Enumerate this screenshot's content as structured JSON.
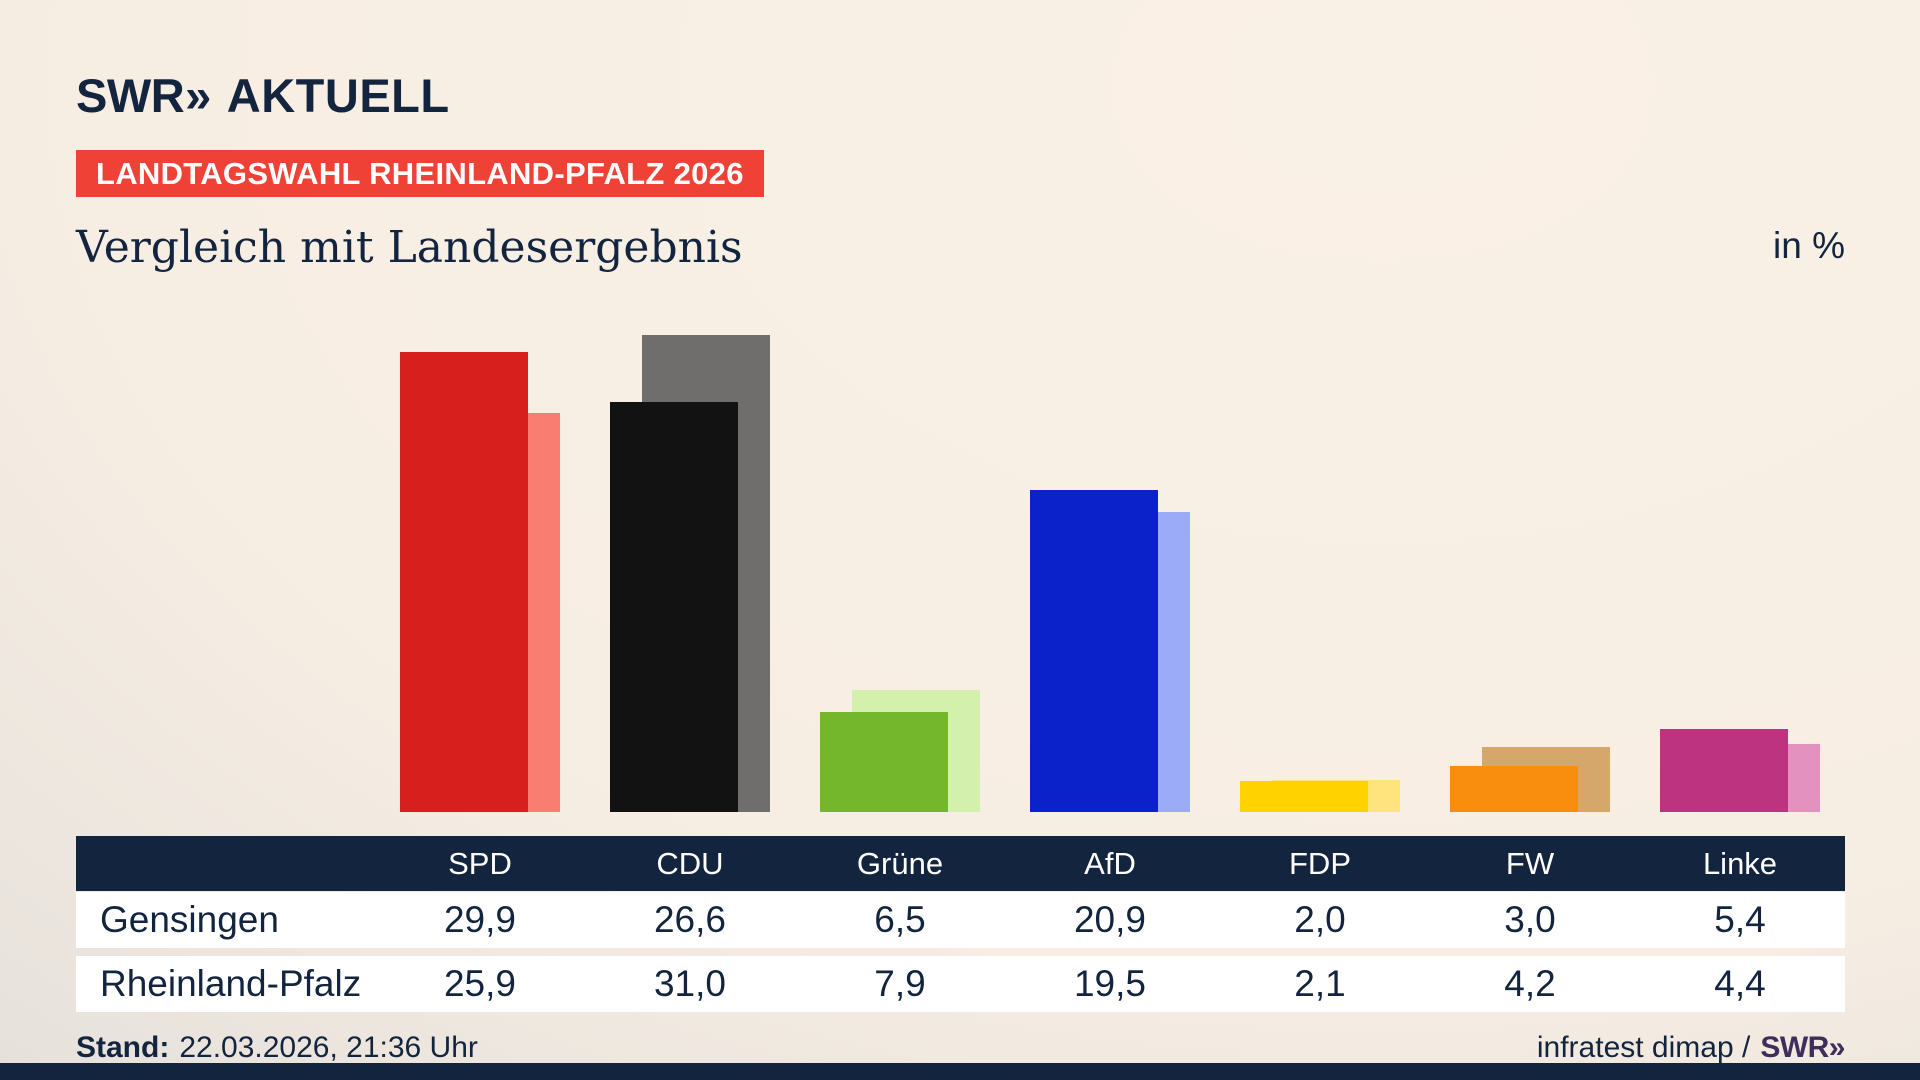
{
  "brand": {
    "logo_swr": "SWR",
    "logo_chevrons": "»",
    "logo_suffix": "AKTUELL",
    "footer_logo": "SWR»"
  },
  "header": {
    "badge": "LANDTAGSWAHL RHEINLAND-PFALZ 2026",
    "title": "Vergleich mit Landesergebnis",
    "unit_label": "in %"
  },
  "colors": {
    "background_cream": "#f8efe4",
    "navy": "#13243f",
    "badge_red": "#ef4135",
    "footer_swr_purple": "#3f2d5a",
    "row_white": "#ffffff"
  },
  "chart_data": {
    "type": "bar",
    "title": "Vergleich mit Landesergebnis",
    "unit": "in %",
    "axes_hidden": true,
    "grid": false,
    "legend": "none (series named in table rows)",
    "ylim": [
      0,
      31
    ],
    "categories": [
      "SPD",
      "CDU",
      "Grüne",
      "AfD",
      "FDP",
      "FW",
      "Linke"
    ],
    "series": [
      {
        "name": "Gensingen",
        "values": [
          29.9,
          26.6,
          6.5,
          20.9,
          2.0,
          3.0,
          5.4
        ]
      },
      {
        "name": "Rheinland-Pfalz",
        "values": [
          25.9,
          31.0,
          7.9,
          19.5,
          2.1,
          4.2,
          4.4
        ]
      }
    ],
    "party_colors": [
      {
        "party": "SPD",
        "gensingen": "#d7201d",
        "rheinland_pfalz": "#f97d70"
      },
      {
        "party": "CDU",
        "gensingen": "#121212",
        "rheinland_pfalz": "#6f6e6c"
      },
      {
        "party": "Grüne",
        "gensingen": "#74b62c",
        "rheinland_pfalz": "#d3f0ad"
      },
      {
        "party": "AfD",
        "gensingen": "#0b22cb",
        "rheinland_pfalz": "#9cabf8"
      },
      {
        "party": "FDP",
        "gensingen": "#ffd200",
        "rheinland_pfalz": "#ffe47d"
      },
      {
        "party": "FW",
        "gensingen": "#f98e0e",
        "rheinland_pfalz": "#d6a76b"
      },
      {
        "party": "Linke",
        "gensingen": "#bd3380",
        "rheinland_pfalz": "#e391bf"
      }
    ]
  },
  "table": {
    "columns": [
      "SPD",
      "CDU",
      "Grüne",
      "AfD",
      "FDP",
      "FW",
      "Linke"
    ],
    "rows": [
      {
        "label": "Gensingen",
        "values": [
          "29,9",
          "26,6",
          "6,5",
          "20,9",
          "2,0",
          "3,0",
          "5,4"
        ]
      },
      {
        "label": "Rheinland-Pfalz",
        "values": [
          "25,9",
          "31,0",
          "7,9",
          "19,5",
          "2,1",
          "4,2",
          "4,4"
        ]
      }
    ]
  },
  "footer": {
    "stand_label": "Stand:",
    "stand_value": "22.03.2026, 21:36 Uhr",
    "source": "infratest dimap /"
  }
}
